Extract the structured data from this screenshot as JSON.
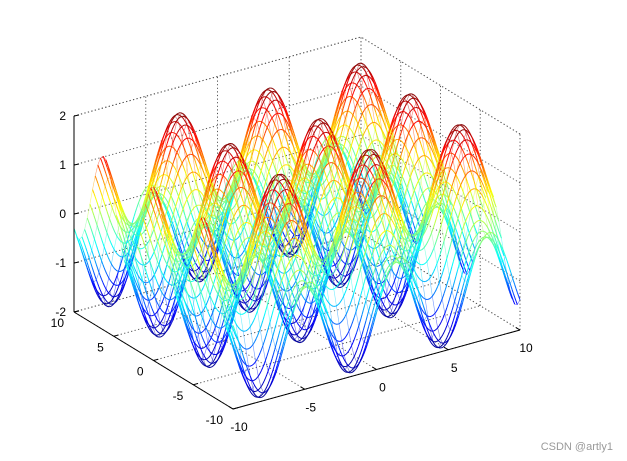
{
  "chart_data": {
    "type": "surface-3d-mesh",
    "title": "",
    "xlabel": "",
    "ylabel": "",
    "zlabel": "",
    "x_range": [
      -10,
      10
    ],
    "y_range": [
      -10,
      10
    ],
    "z_range": [
      -2,
      2
    ],
    "x_ticks": [
      -10,
      -5,
      0,
      5,
      10
    ],
    "y_ticks": [
      -10,
      -5,
      0,
      5,
      10
    ],
    "z_ticks": [
      -2,
      -1,
      0,
      1,
      2
    ],
    "x_tick_labels": [
      "-10",
      "-5",
      "0",
      "5",
      "10"
    ],
    "y_tick_labels": [
      "-10",
      "-5",
      "0",
      "5",
      "10"
    ],
    "z_tick_labels": [
      "-2",
      "-1",
      "0",
      "1",
      "2"
    ],
    "grid": true,
    "colormap": "jet",
    "colormap_stops": [
      "#00008f",
      "#0000ff",
      "#00ffff",
      "#ffff00",
      "#ff0000",
      "#800000"
    ],
    "surface_form": "z = sin(x) + cos(y)"
  },
  "watermark": "CSDN @artly1"
}
